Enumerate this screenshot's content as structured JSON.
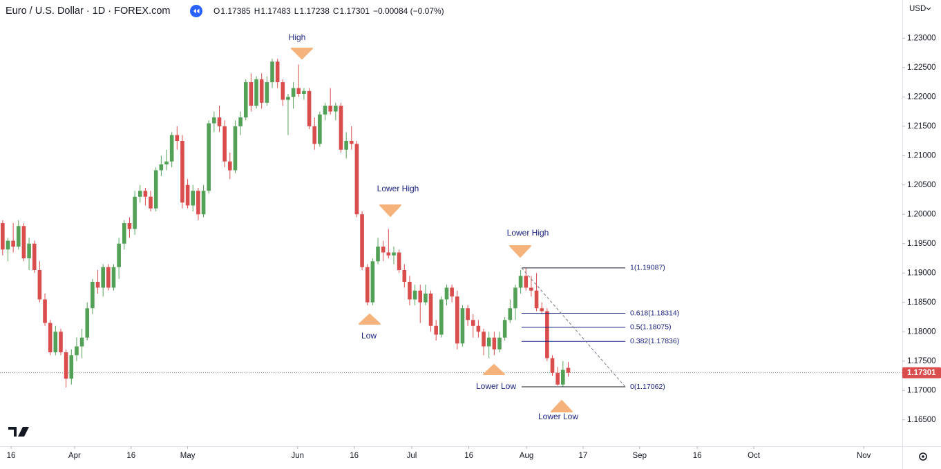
{
  "header": {
    "title": "Euro / U.S. Dollar · 1D · FOREX.com",
    "ohlc": [
      {
        "key": "O",
        "value": "1.17385"
      },
      {
        "key": "H",
        "value": "1.17483"
      },
      {
        "key": "L",
        "value": "1.17238"
      },
      {
        "key": "C",
        "value": "1.17301"
      }
    ],
    "change": "−0.00084 (−0.07%)",
    "currency": "USD"
  },
  "chart_data": {
    "type": "candlestick",
    "up_color": "#53a157",
    "down_color": "#d94d4d",
    "ylim": [
      1.1605,
      1.2365
    ],
    "yticks": [
      {
        "value": 1.165,
        "label": "1.16500"
      },
      {
        "value": 1.17,
        "label": "1.17000"
      },
      {
        "value": 1.175,
        "label": "1.17500"
      },
      {
        "value": 1.18,
        "label": "1.18000"
      },
      {
        "value": 1.185,
        "label": "1.18500"
      },
      {
        "value": 1.19,
        "label": "1.19000"
      },
      {
        "value": 1.195,
        "label": "1.19500"
      },
      {
        "value": 1.2,
        "label": "1.20000"
      },
      {
        "value": 1.205,
        "label": "1.20500"
      },
      {
        "value": 1.21,
        "label": "1.21000"
      },
      {
        "value": 1.215,
        "label": "1.21500"
      },
      {
        "value": 1.22,
        "label": "1.22000"
      },
      {
        "value": 1.225,
        "label": "1.22500"
      },
      {
        "value": 1.23,
        "label": "1.23000"
      }
    ],
    "xlim": [
      -0.5,
      170.2
    ],
    "xticks": [
      {
        "value": 1.6,
        "label": "16"
      },
      {
        "value": 13.6,
        "label": "Apr"
      },
      {
        "value": 24.3,
        "label": "16"
      },
      {
        "value": 35.0,
        "label": "May"
      },
      {
        "value": 55.8,
        "label": "Jun"
      },
      {
        "value": 66.5,
        "label": "16"
      },
      {
        "value": 77.4,
        "label": "Jul"
      },
      {
        "value": 88.2,
        "label": "16"
      },
      {
        "value": 99.1,
        "label": "Aug"
      },
      {
        "value": 109.8,
        "label": "17"
      },
      {
        "value": 120.5,
        "label": "Sep"
      },
      {
        "value": 131.4,
        "label": "16"
      },
      {
        "value": 142.1,
        "label": "Oct"
      },
      {
        "value": 162.9,
        "label": "Nov"
      }
    ],
    "last_price": {
      "value": 1.17301,
      "label": "1.17301"
    },
    "annotations": [
      "High",
      "Lower High",
      "Low",
      "Lower High",
      "Lower Low",
      "Lower Low"
    ],
    "fib_levels": [
      {
        "value": 1.19087,
        "label": "1(1.19087)"
      },
      {
        "value": 1.18314,
        "label": "0.618(1.18314)"
      },
      {
        "value": 1.18075,
        "label": "0.5(1.18075)"
      },
      {
        "value": 1.17836,
        "label": "0.382(1.17836)"
      },
      {
        "value": 1.17062,
        "label": "0(1.17062)"
      }
    ],
    "candles": [
      {
        "open": 1.1985,
        "high": 1.199,
        "low": 1.193,
        "close": 1.194
      },
      {
        "open": 1.194,
        "high": 1.196,
        "low": 1.192,
        "close": 1.1955
      },
      {
        "open": 1.1955,
        "high": 1.1985,
        "low": 1.1935,
        "close": 1.1945
      },
      {
        "open": 1.1945,
        "high": 1.199,
        "low": 1.194,
        "close": 1.198
      },
      {
        "open": 1.198,
        "high": 1.1985,
        "low": 1.192,
        "close": 1.1925
      },
      {
        "open": 1.1925,
        "high": 1.196,
        "low": 1.1905,
        "close": 1.195
      },
      {
        "open": 1.195,
        "high": 1.1955,
        "low": 1.19,
        "close": 1.1905
      },
      {
        "open": 1.1905,
        "high": 1.192,
        "low": 1.185,
        "close": 1.1855
      },
      {
        "open": 1.1855,
        "high": 1.1865,
        "low": 1.181,
        "close": 1.1815
      },
      {
        "open": 1.1815,
        "high": 1.182,
        "low": 1.176,
        "close": 1.1765
      },
      {
        "open": 1.1765,
        "high": 1.181,
        "low": 1.176,
        "close": 1.18
      },
      {
        "open": 1.18,
        "high": 1.1805,
        "low": 1.176,
        "close": 1.1765
      },
      {
        "open": 1.1765,
        "high": 1.177,
        "low": 1.1705,
        "close": 1.172
      },
      {
        "open": 1.172,
        "high": 1.177,
        "low": 1.171,
        "close": 1.176
      },
      {
        "open": 1.176,
        "high": 1.179,
        "low": 1.175,
        "close": 1.1775
      },
      {
        "open": 1.1775,
        "high": 1.1805,
        "low": 1.1755,
        "close": 1.179
      },
      {
        "open": 1.179,
        "high": 1.185,
        "low": 1.1785,
        "close": 1.184
      },
      {
        "open": 1.184,
        "high": 1.189,
        "low": 1.183,
        "close": 1.1885
      },
      {
        "open": 1.1885,
        "high": 1.1905,
        "low": 1.1865,
        "close": 1.1875
      },
      {
        "open": 1.1875,
        "high": 1.1915,
        "low": 1.186,
        "close": 1.191
      },
      {
        "open": 1.191,
        "high": 1.1915,
        "low": 1.187,
        "close": 1.1875
      },
      {
        "open": 1.1875,
        "high": 1.1915,
        "low": 1.187,
        "close": 1.191
      },
      {
        "open": 1.191,
        "high": 1.196,
        "low": 1.189,
        "close": 1.195
      },
      {
        "open": 1.195,
        "high": 1.199,
        "low": 1.194,
        "close": 1.1985
      },
      {
        "open": 1.1985,
        "high": 1.1995,
        "low": 1.196,
        "close": 1.1975
      },
      {
        "open": 1.1975,
        "high": 1.204,
        "low": 1.1965,
        "close": 1.203
      },
      {
        "open": 1.203,
        "high": 1.205,
        "low": 1.202,
        "close": 1.204
      },
      {
        "open": 1.204,
        "high": 1.2045,
        "low": 1.2015,
        "close": 1.203
      },
      {
        "open": 1.203,
        "high": 1.204,
        "low": 1.2005,
        "close": 1.201
      },
      {
        "open": 1.201,
        "high": 1.208,
        "low": 1.2005,
        "close": 1.2075
      },
      {
        "open": 1.2075,
        "high": 1.21,
        "low": 1.2065,
        "close": 1.2085
      },
      {
        "open": 1.2085,
        "high": 1.211,
        "low": 1.2075,
        "close": 1.209
      },
      {
        "open": 1.209,
        "high": 1.214,
        "low": 1.208,
        "close": 1.2135
      },
      {
        "open": 1.2135,
        "high": 1.215,
        "low": 1.211,
        "close": 1.2125
      },
      {
        "open": 1.2125,
        "high": 1.2135,
        "low": 1.201,
        "close": 1.202
      },
      {
        "open": 1.205,
        "high": 1.206,
        "low": 1.201,
        "close": 1.2015
      },
      {
        "open": 1.2015,
        "high": 1.205,
        "low": 1.2005,
        "close": 1.204
      },
      {
        "open": 1.204,
        "high": 1.2045,
        "low": 1.199,
        "close": 1.2
      },
      {
        "open": 1.2,
        "high": 1.205,
        "low": 1.1995,
        "close": 1.204
      },
      {
        "open": 1.204,
        "high": 1.216,
        "low": 1.2035,
        "close": 1.2155
      },
      {
        "open": 1.2155,
        "high": 1.2175,
        "low": 1.214,
        "close": 1.2165
      },
      {
        "open": 1.2165,
        "high": 1.2185,
        "low": 1.214,
        "close": 1.215
      },
      {
        "open": 1.215,
        "high": 1.216,
        "low": 1.208,
        "close": 1.209
      },
      {
        "open": 1.209,
        "high": 1.2105,
        "low": 1.206,
        "close": 1.2075
      },
      {
        "open": 1.2075,
        "high": 1.216,
        "low": 1.207,
        "close": 1.215
      },
      {
        "open": 1.215,
        "high": 1.2175,
        "low": 1.2135,
        "close": 1.2165
      },
      {
        "open": 1.2165,
        "high": 1.223,
        "low": 1.216,
        "close": 1.2225
      },
      {
        "open": 1.2225,
        "high": 1.224,
        "low": 1.2175,
        "close": 1.2185
      },
      {
        "open": 1.2185,
        "high": 1.2235,
        "low": 1.218,
        "close": 1.223
      },
      {
        "open": 1.223,
        "high": 1.224,
        "low": 1.218,
        "close": 1.219
      },
      {
        "open": 1.219,
        "high": 1.2235,
        "low": 1.2185,
        "close": 1.2225
      },
      {
        "open": 1.2225,
        "high": 1.2265,
        "low": 1.2215,
        "close": 1.226
      },
      {
        "open": 1.226,
        "high": 1.2265,
        "low": 1.2215,
        "close": 1.2225
      },
      {
        "open": 1.2225,
        "high": 1.223,
        "low": 1.2185,
        "close": 1.2195
      },
      {
        "open": 1.2195,
        "high": 1.2205,
        "low": 1.2135,
        "close": 1.22
      },
      {
        "open": 1.22,
        "high": 1.2225,
        "low": 1.218,
        "close": 1.2215
      },
      {
        "open": 1.2215,
        "high": 1.2255,
        "low": 1.22,
        "close": 1.2205
      },
      {
        "open": 1.2205,
        "high": 1.2215,
        "low": 1.2195,
        "close": 1.221
      },
      {
        "open": 1.221,
        "high": 1.2215,
        "low": 1.2145,
        "close": 1.215
      },
      {
        "open": 1.215,
        "high": 1.2165,
        "low": 1.211,
        "close": 1.212
      },
      {
        "open": 1.212,
        "high": 1.2175,
        "low": 1.2115,
        "close": 1.217
      },
      {
        "open": 1.217,
        "high": 1.219,
        "low": 1.216,
        "close": 1.2185
      },
      {
        "open": 1.2185,
        "high": 1.2215,
        "low": 1.217,
        "close": 1.2175
      },
      {
        "open": 1.2175,
        "high": 1.219,
        "low": 1.216,
        "close": 1.2185
      },
      {
        "open": 1.2185,
        "high": 1.219,
        "low": 1.2105,
        "close": 1.211
      },
      {
        "open": 1.211,
        "high": 1.214,
        "low": 1.2095,
        "close": 1.2125
      },
      {
        "open": 1.2125,
        "high": 1.215,
        "low": 1.211,
        "close": 1.212
      },
      {
        "open": 1.212,
        "high": 1.2125,
        "low": 1.1995,
        "close": 1.2
      },
      {
        "open": 1.2,
        "high": 1.2005,
        "low": 1.1905,
        "close": 1.191
      },
      {
        "open": 1.191,
        "high": 1.1915,
        "low": 1.1845,
        "close": 1.185
      },
      {
        "open": 1.185,
        "high": 1.1925,
        "low": 1.1845,
        "close": 1.192
      },
      {
        "open": 1.192,
        "high": 1.196,
        "low": 1.1915,
        "close": 1.1945
      },
      {
        "open": 1.1945,
        "high": 1.1955,
        "low": 1.192,
        "close": 1.1935
      },
      {
        "open": 1.1935,
        "high": 1.1975,
        "low": 1.1925,
        "close": 1.193
      },
      {
        "open": 1.193,
        "high": 1.1945,
        "low": 1.1915,
        "close": 1.1935
      },
      {
        "open": 1.1935,
        "high": 1.194,
        "low": 1.19,
        "close": 1.1905
      },
      {
        "open": 1.1905,
        "high": 1.1915,
        "low": 1.1875,
        "close": 1.1885
      },
      {
        "open": 1.1885,
        "high": 1.1895,
        "low": 1.1845,
        "close": 1.1855
      },
      {
        "open": 1.1855,
        "high": 1.188,
        "low": 1.1845,
        "close": 1.187
      },
      {
        "open": 1.187,
        "high": 1.188,
        "low": 1.1815,
        "close": 1.185
      },
      {
        "open": 1.185,
        "high": 1.188,
        "low": 1.1845,
        "close": 1.1865
      },
      {
        "open": 1.1865,
        "high": 1.187,
        "low": 1.18,
        "close": 1.181
      },
      {
        "open": 1.181,
        "high": 1.182,
        "low": 1.1785,
        "close": 1.1795
      },
      {
        "open": 1.1795,
        "high": 1.186,
        "low": 1.179,
        "close": 1.1855
      },
      {
        "open": 1.1855,
        "high": 1.188,
        "low": 1.1845,
        "close": 1.1875
      },
      {
        "open": 1.1875,
        "high": 1.188,
        "low": 1.185,
        "close": 1.186
      },
      {
        "open": 1.186,
        "high": 1.187,
        "low": 1.177,
        "close": 1.178
      },
      {
        "open": 1.178,
        "high": 1.1845,
        "low": 1.1775,
        "close": 1.184
      },
      {
        "open": 1.184,
        "high": 1.1845,
        "low": 1.181,
        "close": 1.182
      },
      {
        "open": 1.182,
        "high": 1.183,
        "low": 1.179,
        "close": 1.181
      },
      {
        "open": 1.181,
        "high": 1.182,
        "low": 1.179,
        "close": 1.18
      },
      {
        "open": 1.18,
        "high": 1.1805,
        "low": 1.176,
        "close": 1.1775
      },
      {
        "open": 1.1775,
        "high": 1.18,
        "low": 1.1755,
        "close": 1.179
      },
      {
        "open": 1.179,
        "high": 1.18,
        "low": 1.176,
        "close": 1.177
      },
      {
        "open": 1.177,
        "high": 1.18,
        "low": 1.1765,
        "close": 1.179
      },
      {
        "open": 1.179,
        "high": 1.1825,
        "low": 1.1785,
        "close": 1.182
      },
      {
        "open": 1.182,
        "high": 1.1855,
        "low": 1.1815,
        "close": 1.184
      },
      {
        "open": 1.184,
        "high": 1.188,
        "low": 1.182,
        "close": 1.1875
      },
      {
        "open": 1.1875,
        "high": 1.1905,
        "low": 1.1865,
        "close": 1.1895
      },
      {
        "open": 1.1895,
        "high": 1.1909,
        "low": 1.187,
        "close": 1.1875
      },
      {
        "open": 1.1875,
        "high": 1.1895,
        "low": 1.186,
        "close": 1.187
      },
      {
        "open": 1.187,
        "high": 1.19,
        "low": 1.1835,
        "close": 1.184
      },
      {
        "open": 1.184,
        "high": 1.185,
        "low": 1.183,
        "close": 1.1835
      },
      {
        "open": 1.1835,
        "high": 1.184,
        "low": 1.175,
        "close": 1.1755
      },
      {
        "open": 1.1755,
        "high": 1.176,
        "low": 1.1725,
        "close": 1.173
      },
      {
        "open": 1.173,
        "high": 1.174,
        "low": 1.1708,
        "close": 1.171
      },
      {
        "open": 1.171,
        "high": 1.175,
        "low": 1.1706,
        "close": 1.1735
      },
      {
        "open": 1.17385,
        "high": 1.17483,
        "low": 1.17238,
        "close": 1.17301
      }
    ]
  }
}
